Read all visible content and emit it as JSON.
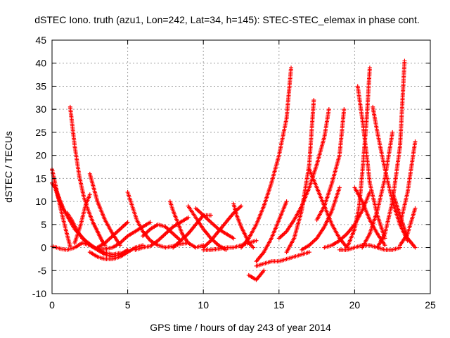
{
  "chart_data": {
    "type": "scatter",
    "title": "dSTEC Iono. truth (azu1, Lon=242, Lat=34, h=145): STEC-STEC_elemax in phase cont.",
    "xlabel": "GPS time / hours of day 243 of year 2014",
    "ylabel": "dSTEC  / TECUs",
    "xlim": [
      0,
      25
    ],
    "ylim": [
      -10,
      45
    ],
    "xticks": [
      0,
      5,
      10,
      15,
      20,
      25
    ],
    "yticks": [
      -10,
      -5,
      0,
      5,
      10,
      15,
      20,
      25,
      30,
      35,
      40,
      45
    ],
    "grid": true,
    "marker": "+",
    "color": "#ff0000",
    "series": [
      {
        "x": [
          0.0,
          0.3,
          0.6,
          1.0,
          1.5,
          2.0,
          2.5,
          3.0,
          3.5,
          4.0,
          4.5,
          5.0
        ],
        "y": [
          0.3,
          0.0,
          -0.3,
          -0.5,
          0.0,
          1.0,
          0.5,
          -0.5,
          -1.5,
          -2.0,
          -1.5,
          -0.5
        ]
      },
      {
        "x": [
          0.0,
          0.2,
          0.5,
          0.8,
          1.0,
          1.3,
          1.6,
          2.0,
          2.4,
          2.8,
          3.2,
          3.6
        ],
        "y": [
          14.0,
          13.0,
          10.0,
          8.0,
          7.5,
          6.0,
          4.0,
          2.0,
          0.8,
          0.0,
          -0.3,
          -0.3
        ]
      },
      {
        "x": [
          0.0,
          0.3,
          0.6,
          0.9,
          1.2
        ],
        "y": [
          17.0,
          12.5,
          8.0,
          4.0,
          0.2
        ]
      },
      {
        "x": [
          1.2,
          1.5,
          1.8,
          2.1,
          2.4,
          2.7,
          3.0,
          3.3,
          3.5
        ],
        "y": [
          30.5,
          22.0,
          15.5,
          11.0,
          8.0,
          5.5,
          3.5,
          1.5,
          0.5
        ]
      },
      {
        "x": [
          0.2,
          0.8,
          1.5,
          2.2,
          2.8,
          3.4,
          4.0,
          4.5
        ],
        "y": [
          13.0,
          8.0,
          4.0,
          1.5,
          0.0,
          -1.0,
          -1.5,
          -1.2
        ]
      },
      {
        "x": [
          1.5,
          1.9,
          2.2,
          2.5
        ],
        "y": [
          1.0,
          5.0,
          9.0,
          11.5
        ]
      },
      {
        "x": [
          2.5,
          3.0,
          3.5,
          4.0,
          4.5
        ],
        "y": [
          16.0,
          10.0,
          6.0,
          3.0,
          0.5
        ]
      },
      {
        "x": [
          3.0,
          3.5,
          4.0,
          4.5,
          5.0
        ],
        "y": [
          0.0,
          1.0,
          2.5,
          4.0,
          5.5
        ]
      },
      {
        "x": [
          2.5,
          3.0,
          3.5,
          4.0,
          4.5,
          5.0,
          5.5,
          6.0
        ],
        "y": [
          -1.0,
          -2.0,
          -2.5,
          -2.5,
          -2.0,
          -1.0,
          0.0,
          0.5
        ]
      },
      {
        "x": [
          3.5,
          4.0,
          4.5,
          5.0,
          5.5,
          6.0,
          6.5
        ],
        "y": [
          -0.3,
          0.0,
          1.0,
          2.5,
          3.5,
          4.5,
          5.5
        ]
      },
      {
        "x": [
          5.0,
          5.3,
          5.6,
          6.0,
          6.5,
          7.0,
          7.5,
          8.0,
          8.5,
          9.0
        ],
        "y": [
          12.0,
          9.0,
          6.0,
          3.5,
          1.5,
          0.5,
          0.0,
          0.3,
          0.8,
          1.0
        ]
      },
      {
        "x": [
          6.0,
          6.5,
          7.0,
          7.5,
          8.0,
          8.5
        ],
        "y": [
          2.5,
          4.0,
          5.0,
          4.5,
          3.0,
          1.5
        ]
      },
      {
        "x": [
          5.5,
          6.0,
          6.5,
          7.0,
          7.5,
          8.0,
          8.5,
          9.0
        ],
        "y": [
          -0.5,
          0.0,
          0.3,
          1.5,
          3.0,
          4.5,
          5.5,
          6.5
        ]
      },
      {
        "x": [
          7.8,
          8.0,
          8.3,
          8.6,
          9.0,
          9.5,
          10.0
        ],
        "y": [
          10.0,
          8.0,
          5.5,
          3.0,
          1.0,
          0.0,
          0.5
        ]
      },
      {
        "x": [
          8.0,
          8.5,
          9.0,
          9.5,
          10.0,
          10.5
        ],
        "y": [
          0.0,
          1.5,
          3.0,
          5.0,
          7.0,
          7.0
        ]
      },
      {
        "x": [
          9.0,
          9.3,
          9.6,
          10.0,
          10.5,
          11.0,
          11.5
        ],
        "y": [
          9.0,
          7.5,
          6.0,
          4.0,
          2.0,
          0.5,
          -0.5
        ]
      },
      {
        "x": [
          10.0,
          10.5,
          11.0,
          11.5,
          12.0,
          12.5
        ],
        "y": [
          0.0,
          1.5,
          3.5,
          5.5,
          7.5,
          9.0
        ]
      },
      {
        "x": [
          9.5,
          10.0,
          10.5,
          11.0,
          11.5,
          12.0
        ],
        "y": [
          8.5,
          7.0,
          5.5,
          4.0,
          3.0,
          2.0
        ]
      },
      {
        "x": [
          10.0,
          10.5,
          11.0,
          11.5,
          12.0,
          12.5,
          13.0,
          13.5
        ],
        "y": [
          -0.5,
          -0.5,
          -0.3,
          0.0,
          0.0,
          0.5,
          1.0,
          1.5
        ]
      },
      {
        "x": [
          12.0,
          12.2,
          12.5,
          12.8,
          13.0,
          13.3
        ],
        "y": [
          9.5,
          7.0,
          4.5,
          2.5,
          1.0,
          0.0
        ]
      },
      {
        "x": [
          12.5,
          13.0,
          13.5,
          14.0,
          14.5,
          15.0,
          15.5,
          15.8
        ],
        "y": [
          0.0,
          2.0,
          5.0,
          9.0,
          14.0,
          20.0,
          28.0,
          39.0
        ]
      },
      {
        "x": [
          13.0,
          13.5,
          14.0
        ],
        "y": [
          -6.0,
          -7.0,
          -5.0
        ]
      },
      {
        "x": [
          13.5,
          14.0,
          14.5,
          15.0,
          15.5
        ],
        "y": [
          -3.0,
          -1.0,
          2.0,
          6.0,
          10.0
        ]
      },
      {
        "x": [
          13.5,
          14.0,
          14.5,
          15.0,
          15.5,
          16.0,
          16.5,
          17.0
        ],
        "y": [
          -4.0,
          -3.5,
          -3.0,
          -3.0,
          -2.5,
          -2.0,
          -1.5,
          -1.0
        ]
      },
      {
        "x": [
          15.5,
          16.0,
          16.5,
          17.0,
          17.3
        ],
        "y": [
          -1.0,
          2.0,
          8.0,
          18.0,
          32.0
        ]
      },
      {
        "x": [
          15.0,
          15.5,
          16.0,
          16.5,
          17.0,
          17.5,
          18.0,
          18.3
        ],
        "y": [
          2.0,
          3.5,
          6.0,
          9.0,
          13.0,
          18.0,
          24.0,
          30.0
        ]
      },
      {
        "x": [
          16.5,
          17.0,
          17.5,
          18.0,
          18.5,
          19.0
        ],
        "y": [
          -0.5,
          0.5,
          2.0,
          4.5,
          8.0,
          13.0
        ]
      },
      {
        "x": [
          17.0,
          17.5,
          18.0,
          18.5,
          19.0,
          19.5
        ],
        "y": [
          17.0,
          13.0,
          9.0,
          5.0,
          2.0,
          0.0
        ]
      },
      {
        "x": [
          17.5,
          18.0,
          18.5,
          19.0,
          19.3
        ],
        "y": [
          6.0,
          9.0,
          14.0,
          20.0,
          30.0
        ]
      },
      {
        "x": [
          18.0,
          18.5,
          19.0,
          19.5,
          20.0,
          20.5,
          21.0
        ],
        "y": [
          0.0,
          0.5,
          1.5,
          3.0,
          5.0,
          8.0,
          12.0
        ]
      },
      {
        "x": [
          19.5,
          20.0,
          20.3,
          20.5,
          20.8,
          21.0
        ],
        "y": [
          0.0,
          4.0,
          9.0,
          16.0,
          28.0,
          39.0
        ]
      },
      {
        "x": [
          20.2,
          20.5,
          20.8,
          21.0,
          21.5,
          22.0
        ],
        "y": [
          35.0,
          28.0,
          20.0,
          14.0,
          7.0,
          2.0
        ]
      },
      {
        "x": [
          20.5,
          21.0,
          21.5,
          22.0,
          22.5
        ],
        "y": [
          0.0,
          3.0,
          8.0,
          15.0,
          25.0
        ]
      },
      {
        "x": [
          21.2,
          21.5,
          22.0,
          22.5,
          23.0,
          23.5
        ],
        "y": [
          30.5,
          25.0,
          17.0,
          10.0,
          5.0,
          1.5
        ]
      },
      {
        "x": [
          21.5,
          22.0,
          22.5,
          23.0,
          23.3
        ],
        "y": [
          0.0,
          3.0,
          10.0,
          22.0,
          40.5
        ]
      },
      {
        "x": [
          20.0,
          20.5,
          21.0,
          21.5,
          22.0
        ],
        "y": [
          13.0,
          10.0,
          6.0,
          3.0,
          0.5
        ]
      },
      {
        "x": [
          22.5,
          23.0,
          23.5,
          24.0
        ],
        "y": [
          12.0,
          7.0,
          2.0,
          0.0
        ]
      },
      {
        "x": [
          23.0,
          23.5,
          24.0
        ],
        "y": [
          5.0,
          12.0,
          23.0
        ]
      },
      {
        "x": [
          23.0,
          23.5,
          24.0
        ],
        "y": [
          0.5,
          3.0,
          8.5
        ]
      },
      {
        "x": [
          19.0,
          19.5,
          20.0,
          20.5,
          21.0,
          21.5,
          22.0,
          22.5,
          23.0
        ],
        "y": [
          -0.5,
          -0.5,
          0.0,
          0.5,
          0.5,
          0.0,
          -0.5,
          -0.5,
          0.0
        ]
      }
    ]
  }
}
